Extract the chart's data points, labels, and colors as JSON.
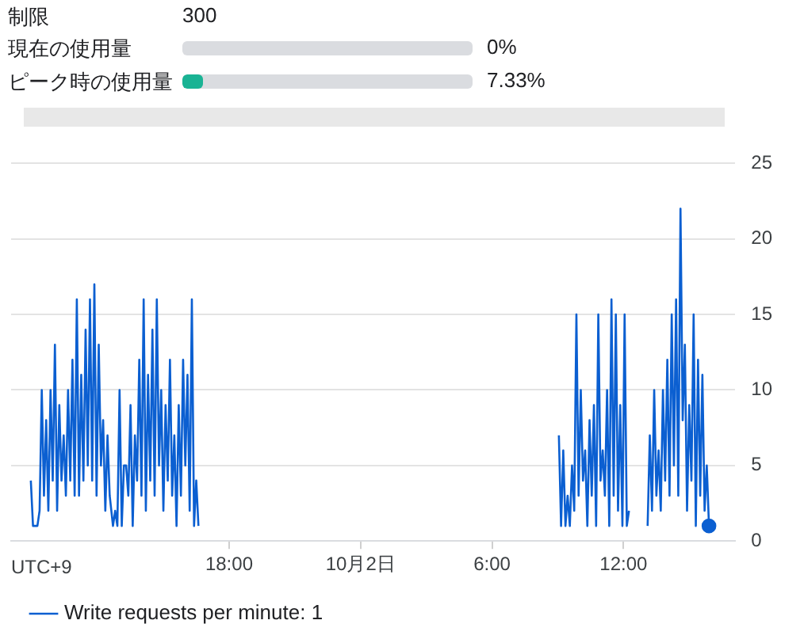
{
  "chart_data": [
    {
      "type": "other",
      "categories": [
        "現在の使用量",
        "ピーク時の使用量"
      ],
      "values": [
        0,
        7.33
      ],
      "value_labels": [
        "0%",
        "7.33%"
      ],
      "color": "#1ab394",
      "annotations": [
        "制限",
        "300"
      ]
    },
    {
      "type": "line",
      "xlim": [
        "--10-01T08:03",
        "--10-02T17:06"
      ],
      "xticks": [
        {
          "value": "--10-01T18:00",
          "label": "18:00"
        },
        {
          "value": "--10-02T00:00",
          "label": "10月2日"
        },
        {
          "value": "--10-02T06:00",
          "label": "6:00"
        },
        {
          "value": "--10-02T12:00",
          "label": "12:00"
        }
      ],
      "ylim": [
        0,
        25
      ],
      "yticks": [
        0,
        5,
        10,
        15,
        20,
        25
      ],
      "grid": "y",
      "legend": "bottom left",
      "annotations": [
        "UTC+9"
      ],
      "series": [
        {
          "name": "Write requests per minute: 1",
          "color": "#0b5fd1",
          "x": [
            "--10-01T08:57",
            "--10-01T09:03",
            "--10-01T09:09",
            "--10-01T09:15",
            "--10-01T09:21",
            "--10-01T09:27",
            "--10-01T09:33",
            "--10-01T09:39",
            "--10-01T09:45",
            "--10-01T09:51",
            "--10-01T09:57",
            "--10-01T10:03",
            "--10-01T10:09",
            "--10-01T10:15",
            "--10-01T10:21",
            "--10-01T10:27",
            "--10-01T10:33",
            "--10-01T10:39",
            "--10-01T10:45",
            "--10-01T10:51",
            "--10-01T10:57",
            "--10-01T11:03",
            "--10-01T11:09",
            "--10-01T11:15",
            "--10-01T11:21",
            "--10-01T11:27",
            "--10-01T11:33",
            "--10-01T11:39",
            "--10-01T11:45",
            "--10-01T11:51",
            "--10-01T11:57",
            "--10-01T12:03",
            "--10-01T12:09",
            "--10-01T12:15",
            "--10-01T12:21",
            "--10-01T12:27",
            "--10-01T12:33",
            "--10-01T12:42",
            "--10-01T12:48",
            "--10-01T12:54",
            "--10-01T13:00",
            "--10-01T13:06",
            "--10-01T13:12",
            "--10-01T13:18",
            "--10-01T13:24",
            "--10-01T13:30",
            "--10-01T13:36",
            "--10-01T13:42",
            "--10-01T13:48",
            "--10-01T13:54",
            "--10-01T14:00",
            "--10-01T14:06",
            "--10-01T14:12",
            "--10-01T14:18",
            "--10-01T14:24",
            "--10-01T14:30",
            "--10-01T14:36",
            "--10-01T14:42",
            "--10-01T14:48",
            "--10-01T14:54",
            "--10-01T15:00",
            "--10-01T15:06",
            "--10-01T15:12",
            "--10-01T15:18",
            "--10-01T15:24",
            "--10-01T15:30",
            "--10-01T15:36",
            "--10-01T15:42",
            "--10-01T15:48",
            "--10-01T15:54",
            "--10-01T16:00",
            "--10-01T16:06",
            "--10-01T16:12",
            "--10-01T16:18",
            "--10-01T16:24",
            "--10-01T16:30",
            "--10-01T16:36",
            "--10-01T17:00",
            "--10-02T09:03",
            "--10-02T09:09",
            "--10-02T09:15",
            "--10-02T09:21",
            "--10-02T09:27",
            "--10-02T09:33",
            "--10-02T09:39",
            "--10-02T09:45",
            "--10-02T09:51",
            "--10-02T09:57",
            "--10-02T10:03",
            "--10-02T10:09",
            "--10-02T10:15",
            "--10-02T10:21",
            "--10-02T10:27",
            "--10-02T10:33",
            "--10-02T10:39",
            "--10-02T10:45",
            "--10-02T10:51",
            "--10-02T10:57",
            "--10-02T11:03",
            "--10-02T11:09",
            "--10-02T11:15",
            "--10-02T11:21",
            "--10-02T11:27",
            "--10-02T11:33",
            "--10-02T11:39",
            "--10-02T11:45",
            "--10-02T11:51",
            "--10-02T11:57",
            "--10-02T12:03",
            "--10-02T12:09",
            "--10-02T12:15",
            "--10-02T12:42",
            "--10-02T13:06",
            "--10-02T13:12",
            "--10-02T13:18",
            "--10-02T13:24",
            "--10-02T13:30",
            "--10-02T13:36",
            "--10-02T13:42",
            "--10-02T13:48",
            "--10-02T13:54",
            "--10-02T14:00",
            "--10-02T14:06",
            "--10-02T14:12",
            "--10-02T14:18",
            "--10-02T14:24",
            "--10-02T14:30",
            "--10-02T14:36",
            "--10-02T14:42",
            "--10-02T14:48",
            "--10-02T14:54",
            "--10-02T15:00",
            "--10-02T15:06",
            "--10-02T15:12",
            "--10-02T15:18",
            "--10-02T15:24",
            "--10-02T15:30",
            "--10-02T15:36",
            "--10-02T15:42",
            "--10-02T15:48",
            "--10-02T15:54"
          ],
          "values": [
            4,
            1,
            1,
            1,
            2,
            10,
            3,
            8,
            2,
            10,
            4,
            13,
            2,
            9,
            4,
            7,
            3,
            10,
            4,
            12,
            3,
            16,
            3,
            11,
            4,
            14,
            5,
            16,
            4,
            17,
            3,
            13,
            5,
            8,
            2,
            7,
            3,
            1,
            2,
            1,
            10,
            1,
            5,
            5,
            3,
            9,
            1,
            7,
            4,
            12,
            3,
            16,
            2,
            11,
            4,
            14,
            3,
            16,
            5,
            10,
            2,
            9,
            4,
            12,
            3,
            7,
            1,
            9,
            3,
            12,
            5,
            11,
            2,
            16,
            1,
            4,
            1,
            null,
            7,
            1,
            6,
            1,
            3,
            1,
            5,
            2,
            15,
            3,
            10,
            4,
            6,
            1,
            8,
            3,
            9,
            1,
            15,
            4,
            6,
            3,
            10,
            1,
            16,
            3,
            15,
            2,
            9,
            1,
            15,
            1,
            2,
            null,
            1,
            7,
            2,
            10,
            3,
            6,
            2,
            10,
            4,
            12,
            3,
            15,
            5,
            16,
            3,
            22,
            8,
            13,
            2,
            9,
            4,
            15,
            1,
            12,
            3,
            11,
            2,
            5,
            1
          ]
        }
      ]
    }
  ]
}
